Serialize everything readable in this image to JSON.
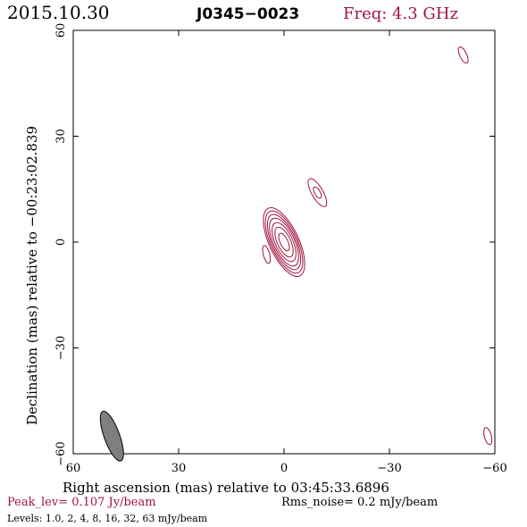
{
  "header": {
    "date": "2015.10.30",
    "source": "J0345−0023",
    "frequency": "Freq: 4.3 GHz"
  },
  "footer": {
    "peak": "Peak_lev=  0.107 Jy/beam",
    "rms": "Rms_noise=  0.2 mJy/beam",
    "levels": "Levels: 1.0,  2,  4,  8,  16,  32,  63 mJy/beam"
  },
  "colors": {
    "contour": "#a0143c",
    "accent_text": "#a0143c",
    "beam_fill": "#7f7f7f",
    "axes": "#000000"
  },
  "chart_data": {
    "type": "contour",
    "title": "J0345−0023",
    "xlabel": "Right ascension (mas) relative to 03:45:33.6896",
    "ylabel": "Declination (mas) relative to −00:23:02.839",
    "xlim": [
      60,
      -60
    ],
    "ylim": [
      -60,
      60
    ],
    "x_ticks": [
      60,
      30,
      0,
      -30,
      -60
    ],
    "y_ticks": [
      -60,
      -30,
      0,
      30,
      60
    ],
    "x_tick_labels": [
      "60",
      "30",
      "0",
      "−30",
      "−60"
    ],
    "y_tick_labels": [
      "−60",
      "−30",
      "0",
      "30",
      "60"
    ],
    "grid": false,
    "peak_jy_per_beam": 0.107,
    "rms_noise_mjy_per_beam": 0.2,
    "contour_levels_mjy_per_beam": [
      1.0,
      2,
      4,
      8,
      16,
      32,
      63
    ],
    "main_component": {
      "x_mas": 0,
      "y_mas": 0,
      "pa_deg": -25,
      "semi_axes_mas": [
        [
          1.1,
          2.7
        ],
        [
          1.9,
          4.6
        ],
        [
          2.5,
          6.0
        ],
        [
          3.0,
          7.4
        ],
        [
          3.4,
          8.5
        ],
        [
          3.8,
          9.6
        ],
        [
          4.2,
          10.6
        ]
      ]
    },
    "minor_components": [
      {
        "x_mas": -9.5,
        "y_mas": 14,
        "pa_deg": -30,
        "semi_axes_mas": [
          [
            0.8,
            1.8
          ],
          [
            1.6,
            4.5
          ]
        ]
      },
      {
        "x_mas": 5,
        "y_mas": -3.5,
        "pa_deg": -15,
        "semi_axes_mas": [
          [
            0.9,
            2.6
          ]
        ]
      },
      {
        "x_mas": -51,
        "y_mas": 53,
        "pa_deg": -25,
        "semi_axes_mas": [
          [
            1.0,
            2.5
          ]
        ]
      },
      {
        "x_mas": -58,
        "y_mas": -55,
        "pa_deg": -15,
        "semi_axes_mas": [
          [
            1.0,
            2.5
          ]
        ]
      }
    ],
    "beam": {
      "x_mas": 49,
      "y_mas": -55,
      "major_mas": 7.5,
      "minor_mas": 2.2,
      "pa_deg": -20
    }
  }
}
